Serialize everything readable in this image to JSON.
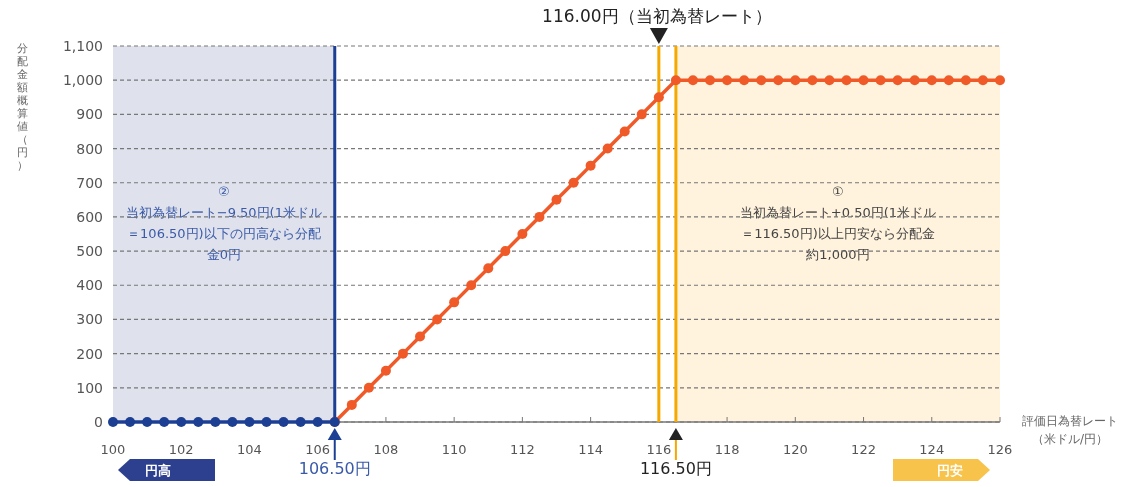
{
  "chart_data": {
    "type": "line",
    "xlabel": "評価日為替レート（米ドル/円）",
    "ylabel": "分配金額概算値（円）",
    "xlim": [
      100,
      126
    ],
    "ylim": [
      0,
      1100
    ],
    "xticks": [
      100,
      102,
      104,
      106,
      108,
      110,
      112,
      114,
      116,
      118,
      120,
      122,
      124,
      126
    ],
    "yticks": [
      0,
      100,
      200,
      300,
      400,
      500,
      600,
      700,
      800,
      900,
      {
        "value": 1000,
        "label": "1,000"
      },
      {
        "value": 1100,
        "label": "1,100"
      }
    ],
    "grid": "y",
    "marker": "circle",
    "line_style": "solid",
    "series": [
      {
        "color": "#f05a28",
        "x": [
          106.5,
          107,
          107.5,
          108,
          108.5,
          109,
          109.5,
          110,
          110.5,
          111,
          111.5,
          112,
          112.5,
          113,
          113.5,
          114,
          114.5,
          115,
          115.5,
          116,
          116.5,
          117,
          117.5,
          118,
          118.5,
          119,
          119.5,
          120,
          120.5,
          121,
          121.5,
          122,
          122.5,
          123,
          123.5,
          124,
          124.5,
          125,
          125.5,
          126
        ],
        "values": [
          0,
          50,
          100,
          150,
          200,
          250,
          300,
          350,
          400,
          450,
          500,
          550,
          600,
          650,
          700,
          750,
          800,
          850,
          900,
          950,
          1000,
          1000,
          1000,
          1000,
          1000,
          1000,
          1000,
          1000,
          1000,
          1000,
          1000,
          1000,
          1000,
          1000,
          1000,
          1000,
          1000,
          1000,
          1000,
          1000
        ]
      },
      {
        "color": "#1c3f94",
        "x": [
          100,
          100.5,
          101,
          101.5,
          102,
          102.5,
          103,
          103.5,
          104,
          104.5,
          105,
          105.5,
          106,
          106.5
        ],
        "values": [
          0,
          0,
          0,
          0,
          0,
          0,
          0,
          0,
          0,
          0,
          0,
          0,
          0,
          0
        ]
      }
    ],
    "bands": [
      {
        "axis": "x",
        "from": 100,
        "to": 106.5,
        "color": "#dfe2ec",
        "label": "②当初為替レート−9.50円(1米ドル＝106.50円)以下の円高なら分配金0円"
      },
      {
        "axis": "x",
        "from": 116.5,
        "to": 126,
        "color": "#fff3dd",
        "label": "①当初為替レート+0.50円(1米ドル＝116.50円)以上円安なら分配金約1,000円"
      }
    ],
    "ref_lines": [
      {
        "axis": "x",
        "value": 106.5,
        "color": "#1c3f94",
        "label": "106.50円"
      },
      {
        "axis": "x",
        "value": 116,
        "color": "#f5a800",
        "label": "116.00円（当初為替レート）"
      },
      {
        "axis": "x",
        "value": 116.5,
        "color": "#f5a800",
        "label": "116.50円"
      }
    ],
    "annotations": [
      "円高",
      "円安"
    ]
  }
}
